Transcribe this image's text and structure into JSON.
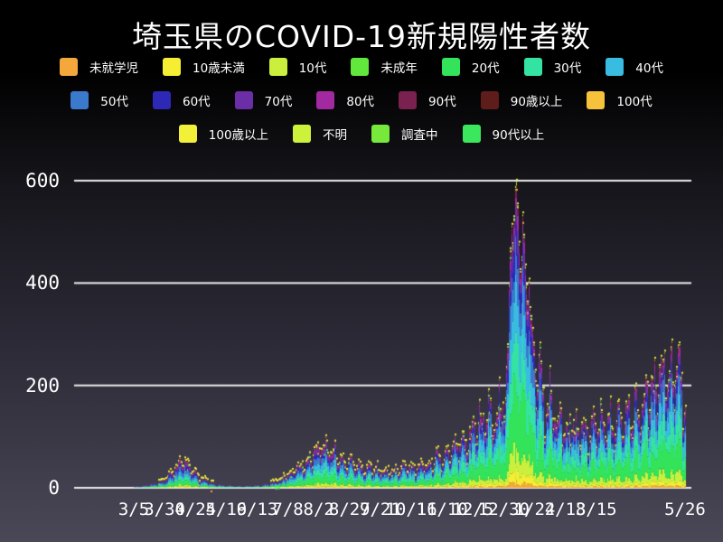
{
  "title": "埼玉県のCOVID-19新規陽性者数",
  "colors": {
    "background_top": "#000000",
    "background_bottom": "#4a4757",
    "grid": "#ececec",
    "text": "#ffffff"
  },
  "series": [
    {
      "name": "未就学児",
      "color": "#f4a73a",
      "share": 0.015
    },
    {
      "name": "10歳未満",
      "color": "#f6ee33",
      "share": 0.03
    },
    {
      "name": "10代",
      "color": "#cbef3d",
      "share": 0.068
    },
    {
      "name": "未成年",
      "color": "#62e73c",
      "share": 0.004
    },
    {
      "name": "20代",
      "color": "#33e359",
      "share": 0.21
    },
    {
      "name": "30代",
      "color": "#34e2a2",
      "share": 0.155
    },
    {
      "name": "40代",
      "color": "#38bce2",
      "share": 0.15
    },
    {
      "name": "50代",
      "color": "#3a79cb",
      "share": 0.128
    },
    {
      "name": "60代",
      "color": "#2d28b5",
      "share": 0.085
    },
    {
      "name": "70代",
      "color": "#6c2ea6",
      "share": 0.065
    },
    {
      "name": "80代",
      "color": "#a229a0",
      "share": 0.05
    },
    {
      "name": "90代",
      "color": "#7a2150",
      "share": 0.024
    },
    {
      "name": "90歳以上",
      "color": "#5e1d1b",
      "share": 0.006
    },
    {
      "name": "100代",
      "color": "#f6c13b",
      "share": 0.001
    },
    {
      "name": "100歳以上",
      "color": "#f3f03a",
      "share": 0.001
    },
    {
      "name": "不明",
      "color": "#cdf23b",
      "share": 0.004
    },
    {
      "name": "調査中",
      "color": "#76e93b",
      "share": 0.004
    },
    {
      "name": "90代以上",
      "color": "#3be85d",
      "share": 0.0
    }
  ],
  "legend": {
    "rows": [
      [
        "未就学児",
        "10歳未満",
        "10代",
        "未成年",
        "20代",
        "30代",
        "40代"
      ],
      [
        "50代",
        "60代",
        "70代",
        "80代",
        "90代",
        "90歳以上",
        "100代"
      ],
      [
        "100歳以上",
        "不明",
        "調査中",
        "90代以上"
      ]
    ]
  },
  "chart_data": {
    "type": "bar",
    "stacked": true,
    "title": "埼玉県のCOVID-19新規陽性者数",
    "xlabel": "",
    "ylabel": "",
    "days": 448,
    "ylim": [
      0,
      620
    ],
    "grid": true,
    "legend_position": "top",
    "yticks": [
      {
        "value": 0,
        "label": "0"
      },
      {
        "value": 200,
        "label": "200"
      },
      {
        "value": 400,
        "label": "400"
      },
      {
        "value": 600,
        "label": "600"
      }
    ],
    "xticks": [
      {
        "day": 0,
        "label": "3/5"
      },
      {
        "day": 25,
        "label": "3/30"
      },
      {
        "day": 50,
        "label": "4/24"
      },
      {
        "day": 75,
        "label": "5/19"
      },
      {
        "day": 100,
        "label": "6/13"
      },
      {
        "day": 125,
        "label": "7/8"
      },
      {
        "day": 150,
        "label": "8/2"
      },
      {
        "day": 175,
        "label": "8/27"
      },
      {
        "day": 200,
        "label": "9/21"
      },
      {
        "day": 225,
        "label": "10/16"
      },
      {
        "day": 250,
        "label": "11/10"
      },
      {
        "day": 275,
        "label": "12/5"
      },
      {
        "day": 300,
        "label": "12/30"
      },
      {
        "day": 325,
        "label": "1/24"
      },
      {
        "day": 350,
        "label": "2/18"
      },
      {
        "day": 375,
        "label": "3/15"
      },
      {
        "day": 447,
        "label": "5/26"
      }
    ],
    "envelope": [
      [
        0,
        3
      ],
      [
        8,
        5
      ],
      [
        16,
        8
      ],
      [
        24,
        14
      ],
      [
        30,
        30
      ],
      [
        36,
        48
      ],
      [
        40,
        55
      ],
      [
        46,
        38
      ],
      [
        52,
        22
      ],
      [
        60,
        12
      ],
      [
        70,
        6
      ],
      [
        80,
        4
      ],
      [
        90,
        4
      ],
      [
        100,
        5
      ],
      [
        110,
        9
      ],
      [
        118,
        16
      ],
      [
        126,
        28
      ],
      [
        134,
        44
      ],
      [
        142,
        60
      ],
      [
        150,
        78
      ],
      [
        156,
        88
      ],
      [
        162,
        74
      ],
      [
        170,
        56
      ],
      [
        180,
        45
      ],
      [
        190,
        40
      ],
      [
        200,
        36
      ],
      [
        210,
        34
      ],
      [
        220,
        40
      ],
      [
        230,
        44
      ],
      [
        240,
        52
      ],
      [
        250,
        62
      ],
      [
        258,
        76
      ],
      [
        266,
        95
      ],
      [
        274,
        115
      ],
      [
        282,
        135
      ],
      [
        290,
        155
      ],
      [
        296,
        170
      ],
      [
        300,
        185
      ],
      [
        303,
        230
      ],
      [
        306,
        300
      ],
      [
        310,
        420
      ],
      [
        314,
        380
      ],
      [
        320,
        300
      ],
      [
        326,
        250
      ],
      [
        332,
        205
      ],
      [
        338,
        170
      ],
      [
        344,
        145
      ],
      [
        352,
        122
      ],
      [
        360,
        110
      ],
      [
        368,
        118
      ],
      [
        376,
        128
      ],
      [
        384,
        138
      ],
      [
        392,
        128
      ],
      [
        400,
        140
      ],
      [
        408,
        160
      ],
      [
        414,
        180
      ],
      [
        420,
        205
      ],
      [
        426,
        225
      ],
      [
        432,
        252
      ],
      [
        436,
        240
      ],
      [
        440,
        222
      ],
      [
        444,
        200
      ],
      [
        447,
        185
      ]
    ],
    "peak_overrides": {
      "304": 400,
      "305": 470,
      "306": 520,
      "307": 480,
      "308": 530,
      "309": 585,
      "310": 605,
      "311": 560,
      "312": 480,
      "313": 420,
      "314": 455,
      "315": 540,
      "316": 500,
      "317": 430,
      "318": 390,
      "319": 360,
      "320": 410,
      "321": 355,
      "322": 330
    },
    "weekday_factors": [
      1.05,
      1.08,
      1.0,
      0.95,
      0.6,
      0.75,
      0.9
    ],
    "noise_seed": 7,
    "marker_colors": {
      "top": "#f1e840",
      "alt1": "#46e05e",
      "alt2": "#f4a73a"
    }
  }
}
